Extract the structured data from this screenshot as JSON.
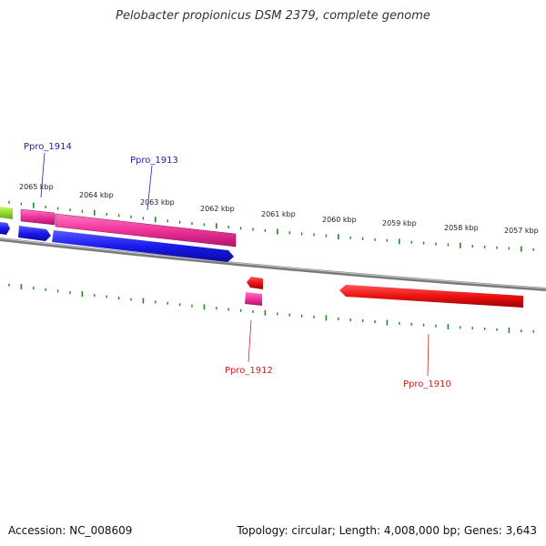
{
  "title": "Pelobacter propionicus DSM 2379, complete genome",
  "accession_label": "Accession: NC_008609",
  "stats_label": "Topology: circular; Length: 4,008,000 bp; Genes: 3,643",
  "colors": {
    "forward_pink": "#ee3399",
    "reverse_blue": "#1a1aee",
    "reverse_red": "#ee1111",
    "tick_green": "#228822",
    "backbone": "#888888",
    "label_blue": "#2222aa",
    "label_red": "#cc2222"
  },
  "kbp_labels": [
    "2065 kbp",
    "2064 kbp",
    "2063 kbp",
    "2062 kbp",
    "2061 kbp",
    "2060 kbp",
    "2059 kbp",
    "2058 kbp",
    "2057 kbp"
  ],
  "genes": [
    {
      "name": "Ppro_1914",
      "color": "label_blue"
    },
    {
      "name": "Ppro_1913",
      "color": "label_blue"
    },
    {
      "name": "Ppro_1912",
      "color": "label_red"
    },
    {
      "name": "Ppro_1910",
      "color": "label_red"
    }
  ]
}
